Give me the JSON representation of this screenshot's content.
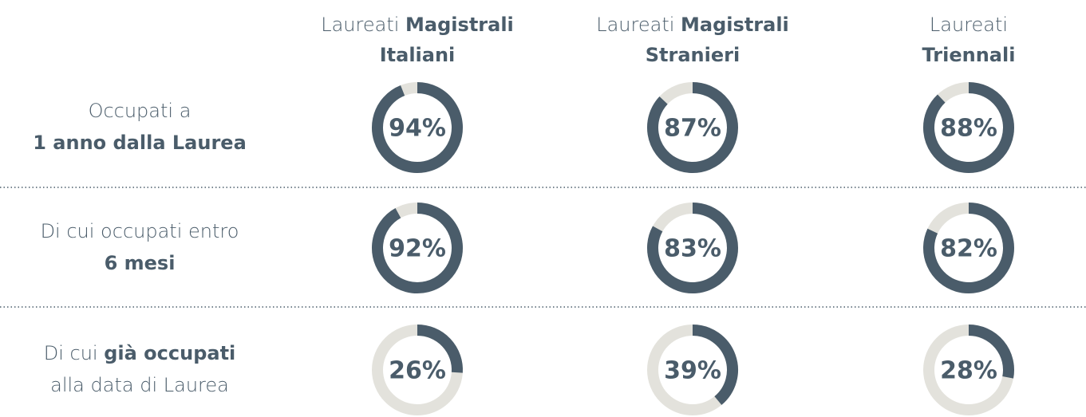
{
  "chart_data": {
    "type": "donut",
    "color": "#4a5c6a",
    "track_color": "#e3e2dc",
    "columns": [
      {
        "lines": [
          [
            {
              "text": "Laureati",
              "bold": false
            },
            {
              "text": "Magistrali",
              "bold": true
            }
          ],
          [
            {
              "text": "Italiani",
              "bold": true
            }
          ]
        ]
      },
      {
        "lines": [
          [
            {
              "text": "Laureati",
              "bold": false
            },
            {
              "text": "Magistrali",
              "bold": true
            }
          ],
          [
            {
              "text": "Stranieri",
              "bold": true
            }
          ]
        ]
      },
      {
        "lines": [
          [
            {
              "text": "Laureati",
              "bold": false
            }
          ],
          [
            {
              "text": "Triennali",
              "bold": true
            }
          ]
        ]
      }
    ],
    "rows": [
      {
        "lines": [
          [
            {
              "text": "Occupati a",
              "bold": false
            }
          ],
          [
            {
              "text": "1 anno dalla Laurea",
              "bold": true
            }
          ]
        ]
      },
      {
        "lines": [
          [
            {
              "text": "Di cui occupati entro",
              "bold": false
            }
          ],
          [
            {
              "text": "6 mesi",
              "bold": true
            }
          ]
        ]
      },
      {
        "lines": [
          [
            {
              "text": "Di cui",
              "bold": false
            },
            {
              "text": "già occupati",
              "bold": true
            }
          ],
          [
            {
              "text": "alla data di Laurea",
              "bold": false
            }
          ]
        ]
      }
    ],
    "values": [
      [
        94,
        87,
        88
      ],
      [
        92,
        83,
        82
      ],
      [
        26,
        39,
        28
      ]
    ],
    "value_labels": [
      [
        "94%",
        "87%",
        "88%"
      ],
      [
        "92%",
        "83%",
        "82%"
      ],
      [
        "26%",
        "39%",
        "28%"
      ]
    ]
  }
}
